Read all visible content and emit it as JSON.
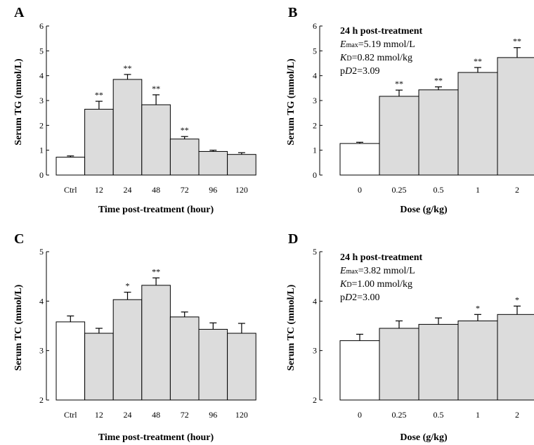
{
  "chart_data": [
    {
      "panel": "A",
      "type": "bar",
      "categories": [
        "Ctrl",
        "12",
        "24",
        "48",
        "72",
        "96",
        "120"
      ],
      "values": [
        0.72,
        2.65,
        3.85,
        2.83,
        1.45,
        0.95,
        0.83
      ],
      "errors": [
        0.05,
        0.32,
        0.2,
        0.4,
        0.1,
        0.05,
        0.07
      ],
      "significance": [
        "",
        "**",
        "**",
        "**",
        "**",
        "",
        ""
      ],
      "xlabel": "Time post-treatment (hour)",
      "ylabel": "Serum TG (mmol/L)",
      "ylim": [
        0,
        6
      ],
      "yticks": [
        "0",
        "1",
        "2",
        "3",
        "4",
        "5",
        "6"
      ],
      "bar_colors": [
        "#ffffff",
        "#dcdcdc",
        "#dcdcdc",
        "#dcdcdc",
        "#dcdcdc",
        "#dcdcdc",
        "#dcdcdc"
      ],
      "annotation": null
    },
    {
      "panel": "B",
      "type": "bar",
      "categories": [
        "0",
        "0.25",
        "0.5",
        "1",
        "2"
      ],
      "values": [
        1.27,
        3.17,
        3.43,
        4.13,
        4.73
      ],
      "errors": [
        0.05,
        0.25,
        0.12,
        0.2,
        0.4
      ],
      "significance": [
        "",
        "**",
        "**",
        "**",
        "**"
      ],
      "xlabel": "Dose (g/kg)",
      "ylabel": "Serum TG (mmol/L)",
      "ylim": [
        0,
        6
      ],
      "yticks": [
        "0",
        "1",
        "2",
        "3",
        "4",
        "5",
        "6"
      ],
      "bar_colors": [
        "#ffffff",
        "#dcdcdc",
        "#dcdcdc",
        "#dcdcdc",
        "#dcdcdc"
      ],
      "annotation": {
        "title": "24 h post-treatment",
        "emax_sym": "E",
        "emax_sub": "max",
        "emax_val": "=5.19 mmol/L",
        "kd_sym": "K",
        "kd_sub": "D",
        "kd_val": "=0.82 mmol/kg",
        "pd2_p": "p",
        "pd2_sym": "D",
        "pd2_val": "2=3.09"
      }
    },
    {
      "panel": "C",
      "type": "bar",
      "categories": [
        "Ctrl",
        "12",
        "24",
        "48",
        "72",
        "96",
        "120"
      ],
      "values": [
        3.58,
        3.35,
        4.03,
        4.32,
        3.68,
        3.43,
        3.35
      ],
      "errors": [
        0.12,
        0.1,
        0.15,
        0.15,
        0.1,
        0.13,
        0.2
      ],
      "significance": [
        "",
        "",
        "*",
        "**",
        "",
        "",
        ""
      ],
      "xlabel": "Time post-treatment (hour)",
      "ylabel": "Serum TC (mmol/L)",
      "ylim": [
        2,
        5
      ],
      "yticks": [
        "2",
        "3",
        "4",
        "5"
      ],
      "bar_colors": [
        "#ffffff",
        "#dcdcdc",
        "#dcdcdc",
        "#dcdcdc",
        "#dcdcdc",
        "#dcdcdc",
        "#dcdcdc"
      ],
      "annotation": null
    },
    {
      "panel": "D",
      "type": "bar",
      "categories": [
        "0",
        "0.25",
        "0.5",
        "1",
        "2"
      ],
      "values": [
        3.2,
        3.45,
        3.53,
        3.6,
        3.73
      ],
      "errors": [
        0.13,
        0.15,
        0.13,
        0.13,
        0.17
      ],
      "significance": [
        "",
        "",
        "",
        "*",
        "*"
      ],
      "xlabel": "Dose (g/kg)",
      "ylabel": "Serum TC (mmol/L)",
      "ylim": [
        2,
        5
      ],
      "yticks": [
        "2",
        "3",
        "4",
        "5"
      ],
      "bar_colors": [
        "#ffffff",
        "#dcdcdc",
        "#dcdcdc",
        "#dcdcdc",
        "#dcdcdc"
      ],
      "annotation": {
        "title": "24 h post-treatment",
        "emax_sym": "E",
        "emax_sub": "max",
        "emax_val": "=3.82 mmol/L",
        "kd_sym": "K",
        "kd_sub": "D",
        "kd_val": "=1.00 mmol/kg",
        "pd2_p": "p",
        "pd2_sym": "D",
        "pd2_val": "2=3.00"
      }
    }
  ]
}
